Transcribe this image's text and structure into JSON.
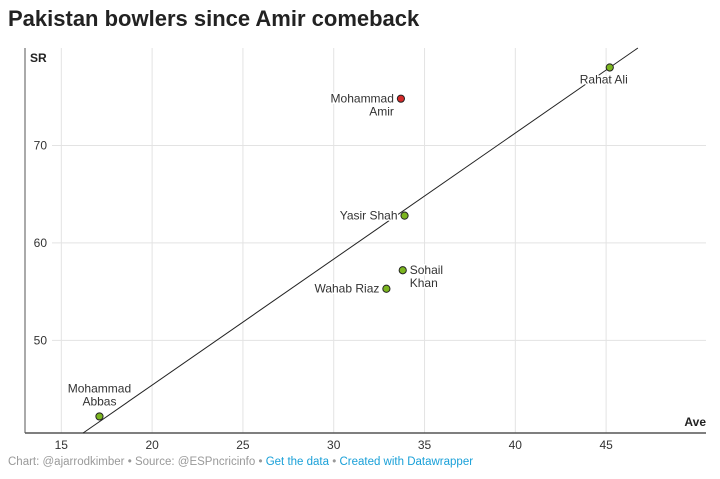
{
  "title": "Pakistan bowlers since Amir comeback",
  "footer": {
    "credit": "Chart: @ajarrodkimber",
    "source": "Source: @ESPncricinfo",
    "get_data": "Get the data",
    "created_with": "Created with Datawrapper",
    "separator": "•"
  },
  "chart_data": {
    "type": "scatter",
    "title": "Pakistan bowlers since Amir comeback",
    "xlabel": "Ave",
    "ylabel": "SR",
    "xlim": [
      13,
      50.5
    ],
    "ylim": [
      40.5,
      80
    ],
    "xticks": [
      "15",
      "20",
      "25",
      "30",
      "35",
      "40",
      "45"
    ],
    "yticks": [
      "50",
      "60",
      "70"
    ],
    "grid": true,
    "colors": {
      "highlight": "#d42a2a",
      "default": "#7bb51f",
      "grid": "#e3e3e3",
      "axis": "#555555"
    },
    "points": [
      {
        "name": [
          "Mohammad",
          "Amir"
        ],
        "x": 33.7,
        "y": 74.8,
        "highlight": true,
        "label_side": "left"
      },
      {
        "name": [
          "Rahat Ali"
        ],
        "x": 45.2,
        "y": 78.0,
        "highlight": false,
        "label_side": "below"
      },
      {
        "name": [
          "Yasir Shah"
        ],
        "x": 33.9,
        "y": 62.8,
        "highlight": false,
        "label_side": "left"
      },
      {
        "name": [
          "Sohail",
          "Khan"
        ],
        "x": 33.8,
        "y": 57.2,
        "highlight": false,
        "label_side": "right"
      },
      {
        "name": [
          "Wahab Riaz"
        ],
        "x": 32.9,
        "y": 55.3,
        "highlight": false,
        "label_side": "left"
      },
      {
        "name": [
          "Mohammad",
          "Abbas"
        ],
        "x": 17.1,
        "y": 42.2,
        "highlight": false,
        "label_side": "above"
      }
    ],
    "trendline": {
      "x1": 16.2,
      "y1": 40.5,
      "x2": 46.75,
      "y2": 80
    }
  }
}
